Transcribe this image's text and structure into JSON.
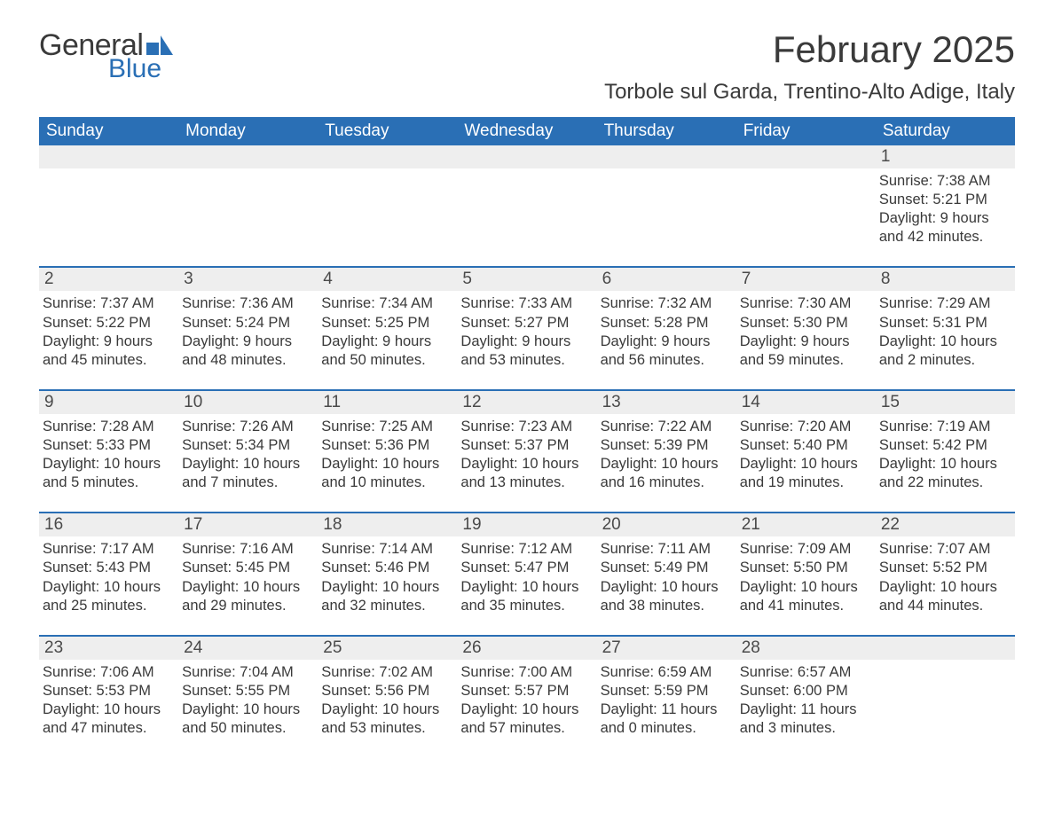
{
  "logo": {
    "text1": "General",
    "text2": "Blue",
    "icon_color": "#2a6fb5"
  },
  "title": "February 2025",
  "location": "Torbole sul Garda, Trentino-Alto Adige, Italy",
  "colors": {
    "header_bar": "#2a6fb5",
    "daynum_bg": "#eeeeee",
    "week_divider": "#2a6fb5",
    "text": "#3a3a3a",
    "white": "#ffffff"
  },
  "typography": {
    "title_fontsize": 42,
    "location_fontsize": 24,
    "dow_fontsize": 19,
    "daynum_fontsize": 19,
    "body_fontsize": 16.5
  },
  "day_names": [
    "Sunday",
    "Monday",
    "Tuesday",
    "Wednesday",
    "Thursday",
    "Friday",
    "Saturday"
  ],
  "weeks": [
    [
      null,
      null,
      null,
      null,
      null,
      null,
      {
        "n": "1",
        "sunrise": "Sunrise: 7:38 AM",
        "sunset": "Sunset: 5:21 PM",
        "dl1": "Daylight: 9 hours",
        "dl2": "and 42 minutes."
      }
    ],
    [
      {
        "n": "2",
        "sunrise": "Sunrise: 7:37 AM",
        "sunset": "Sunset: 5:22 PM",
        "dl1": "Daylight: 9 hours",
        "dl2": "and 45 minutes."
      },
      {
        "n": "3",
        "sunrise": "Sunrise: 7:36 AM",
        "sunset": "Sunset: 5:24 PM",
        "dl1": "Daylight: 9 hours",
        "dl2": "and 48 minutes."
      },
      {
        "n": "4",
        "sunrise": "Sunrise: 7:34 AM",
        "sunset": "Sunset: 5:25 PM",
        "dl1": "Daylight: 9 hours",
        "dl2": "and 50 minutes."
      },
      {
        "n": "5",
        "sunrise": "Sunrise: 7:33 AM",
        "sunset": "Sunset: 5:27 PM",
        "dl1": "Daylight: 9 hours",
        "dl2": "and 53 minutes."
      },
      {
        "n": "6",
        "sunrise": "Sunrise: 7:32 AM",
        "sunset": "Sunset: 5:28 PM",
        "dl1": "Daylight: 9 hours",
        "dl2": "and 56 minutes."
      },
      {
        "n": "7",
        "sunrise": "Sunrise: 7:30 AM",
        "sunset": "Sunset: 5:30 PM",
        "dl1": "Daylight: 9 hours",
        "dl2": "and 59 minutes."
      },
      {
        "n": "8",
        "sunrise": "Sunrise: 7:29 AM",
        "sunset": "Sunset: 5:31 PM",
        "dl1": "Daylight: 10 hours",
        "dl2": "and 2 minutes."
      }
    ],
    [
      {
        "n": "9",
        "sunrise": "Sunrise: 7:28 AM",
        "sunset": "Sunset: 5:33 PM",
        "dl1": "Daylight: 10 hours",
        "dl2": "and 5 minutes."
      },
      {
        "n": "10",
        "sunrise": "Sunrise: 7:26 AM",
        "sunset": "Sunset: 5:34 PM",
        "dl1": "Daylight: 10 hours",
        "dl2": "and 7 minutes."
      },
      {
        "n": "11",
        "sunrise": "Sunrise: 7:25 AM",
        "sunset": "Sunset: 5:36 PM",
        "dl1": "Daylight: 10 hours",
        "dl2": "and 10 minutes."
      },
      {
        "n": "12",
        "sunrise": "Sunrise: 7:23 AM",
        "sunset": "Sunset: 5:37 PM",
        "dl1": "Daylight: 10 hours",
        "dl2": "and 13 minutes."
      },
      {
        "n": "13",
        "sunrise": "Sunrise: 7:22 AM",
        "sunset": "Sunset: 5:39 PM",
        "dl1": "Daylight: 10 hours",
        "dl2": "and 16 minutes."
      },
      {
        "n": "14",
        "sunrise": "Sunrise: 7:20 AM",
        "sunset": "Sunset: 5:40 PM",
        "dl1": "Daylight: 10 hours",
        "dl2": "and 19 minutes."
      },
      {
        "n": "15",
        "sunrise": "Sunrise: 7:19 AM",
        "sunset": "Sunset: 5:42 PM",
        "dl1": "Daylight: 10 hours",
        "dl2": "and 22 minutes."
      }
    ],
    [
      {
        "n": "16",
        "sunrise": "Sunrise: 7:17 AM",
        "sunset": "Sunset: 5:43 PM",
        "dl1": "Daylight: 10 hours",
        "dl2": "and 25 minutes."
      },
      {
        "n": "17",
        "sunrise": "Sunrise: 7:16 AM",
        "sunset": "Sunset: 5:45 PM",
        "dl1": "Daylight: 10 hours",
        "dl2": "and 29 minutes."
      },
      {
        "n": "18",
        "sunrise": "Sunrise: 7:14 AM",
        "sunset": "Sunset: 5:46 PM",
        "dl1": "Daylight: 10 hours",
        "dl2": "and 32 minutes."
      },
      {
        "n": "19",
        "sunrise": "Sunrise: 7:12 AM",
        "sunset": "Sunset: 5:47 PM",
        "dl1": "Daylight: 10 hours",
        "dl2": "and 35 minutes."
      },
      {
        "n": "20",
        "sunrise": "Sunrise: 7:11 AM",
        "sunset": "Sunset: 5:49 PM",
        "dl1": "Daylight: 10 hours",
        "dl2": "and 38 minutes."
      },
      {
        "n": "21",
        "sunrise": "Sunrise: 7:09 AM",
        "sunset": "Sunset: 5:50 PM",
        "dl1": "Daylight: 10 hours",
        "dl2": "and 41 minutes."
      },
      {
        "n": "22",
        "sunrise": "Sunrise: 7:07 AM",
        "sunset": "Sunset: 5:52 PM",
        "dl1": "Daylight: 10 hours",
        "dl2": "and 44 minutes."
      }
    ],
    [
      {
        "n": "23",
        "sunrise": "Sunrise: 7:06 AM",
        "sunset": "Sunset: 5:53 PM",
        "dl1": "Daylight: 10 hours",
        "dl2": "and 47 minutes."
      },
      {
        "n": "24",
        "sunrise": "Sunrise: 7:04 AM",
        "sunset": "Sunset: 5:55 PM",
        "dl1": "Daylight: 10 hours",
        "dl2": "and 50 minutes."
      },
      {
        "n": "25",
        "sunrise": "Sunrise: 7:02 AM",
        "sunset": "Sunset: 5:56 PM",
        "dl1": "Daylight: 10 hours",
        "dl2": "and 53 minutes."
      },
      {
        "n": "26",
        "sunrise": "Sunrise: 7:00 AM",
        "sunset": "Sunset: 5:57 PM",
        "dl1": "Daylight: 10 hours",
        "dl2": "and 57 minutes."
      },
      {
        "n": "27",
        "sunrise": "Sunrise: 6:59 AM",
        "sunset": "Sunset: 5:59 PM",
        "dl1": "Daylight: 11 hours",
        "dl2": "and 0 minutes."
      },
      {
        "n": "28",
        "sunrise": "Sunrise: 6:57 AM",
        "sunset": "Sunset: 6:00 PM",
        "dl1": "Daylight: 11 hours",
        "dl2": "and 3 minutes."
      },
      null
    ]
  ]
}
